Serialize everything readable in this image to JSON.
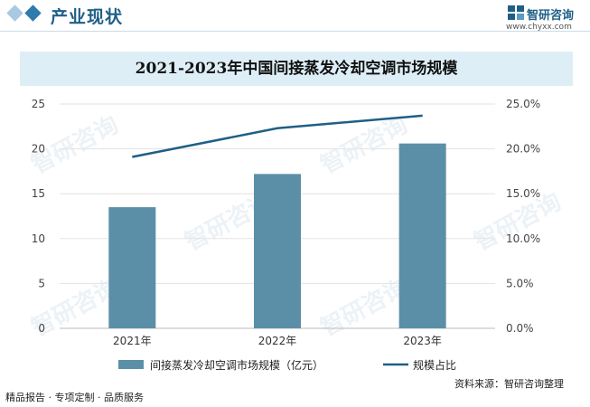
{
  "header": {
    "section_title": "产业现状",
    "logo_text": "智研咨询",
    "logo_url": "www.chyxx.com",
    "logo_icon": "zhiyan-logo-icon",
    "diamond_colors": [
      "#2f7bb0",
      "#a8c9e0"
    ]
  },
  "watermark": {
    "brand": "智研咨询"
  },
  "chart_data": {
    "type": "bar",
    "title": "2021-2023年中国间接蒸发冷却空调市场规模",
    "categories": [
      "2021年",
      "2022年",
      "2023年"
    ],
    "series": [
      {
        "name": "间接蒸发冷却空调市场规模（亿元）",
        "type": "bar",
        "axis": "left",
        "color": "#5b8fa8",
        "values": [
          13.5,
          17.2,
          20.6
        ]
      },
      {
        "name": "规模占比",
        "type": "line",
        "axis": "right",
        "color": "#1f5f86",
        "values": [
          19.1,
          22.3,
          23.7
        ]
      }
    ],
    "y_left": {
      "min": 0,
      "max": 25,
      "ticks": [
        "0",
        "5",
        "10",
        "15",
        "20",
        "25"
      ]
    },
    "y_right": {
      "min": 0,
      "max": 25,
      "ticks": [
        "0.0%",
        "5.0%",
        "10.0%",
        "15.0%",
        "20.0%",
        "25.0%"
      ]
    },
    "grid": true,
    "legend_position": "bottom"
  },
  "footer": {
    "left_text": "精品报告 · 专项定制 · 品质服务",
    "source_label": "资料来源：",
    "source_value": "智研咨询整理"
  }
}
